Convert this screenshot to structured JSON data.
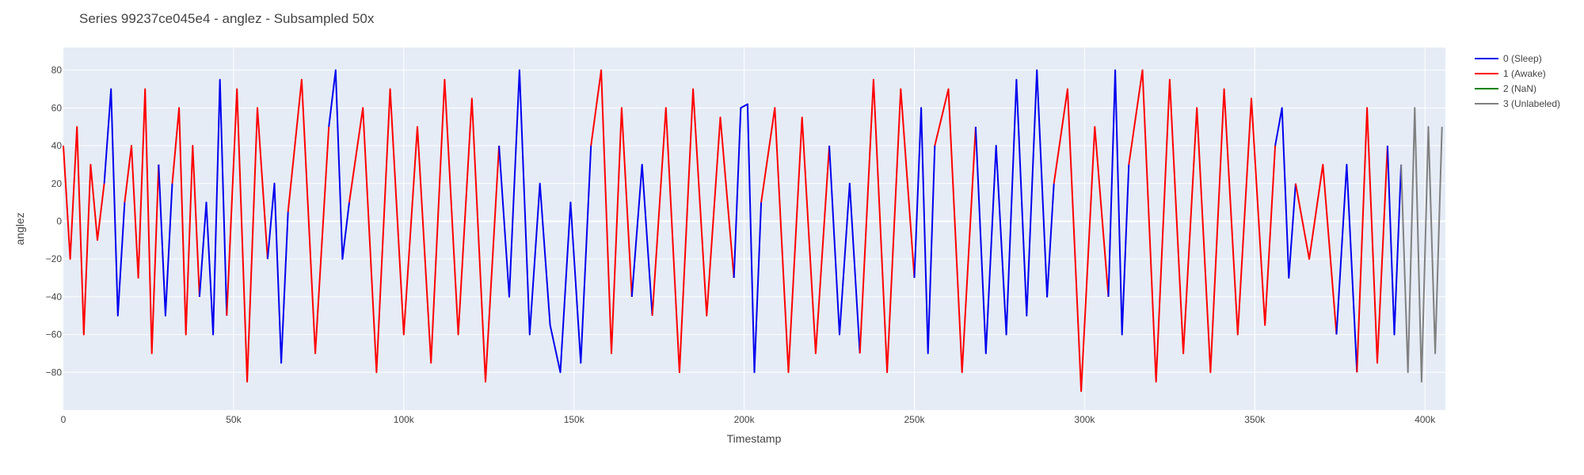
{
  "chart_data": {
    "type": "line",
    "title": "Series 99237ce045e4 - anglez - Subsampled 50x",
    "xlabel": "Timestamp",
    "ylabel": "anglez",
    "xlim": [
      0,
      406000
    ],
    "ylim": [
      -100,
      92
    ],
    "x_ticks": [
      {
        "value": 0,
        "label": "0"
      },
      {
        "value": 50000,
        "label": "50k"
      },
      {
        "value": 100000,
        "label": "100k"
      },
      {
        "value": 150000,
        "label": "150k"
      },
      {
        "value": 200000,
        "label": "200k"
      },
      {
        "value": 250000,
        "label": "250k"
      },
      {
        "value": 300000,
        "label": "300k"
      },
      {
        "value": 350000,
        "label": "350k"
      },
      {
        "value": 400000,
        "label": "400k"
      }
    ],
    "y_ticks": [
      {
        "value": 80,
        "label": "80"
      },
      {
        "value": 60,
        "label": "60"
      },
      {
        "value": 40,
        "label": "40"
      },
      {
        "value": 20,
        "label": "20"
      },
      {
        "value": 0,
        "label": "0"
      },
      {
        "value": -20,
        "label": "−20"
      },
      {
        "value": -40,
        "label": "−40"
      },
      {
        "value": -60,
        "label": "−60"
      },
      {
        "value": -80,
        "label": "−80"
      }
    ],
    "grid": true,
    "legend_position": "top-right",
    "series": [
      {
        "name": "0 (Sleep)",
        "color": "#0000ee"
      },
      {
        "name": "1 (Awake)",
        "color": "#ff0000"
      },
      {
        "name": "2 (NaN)",
        "color": "#008000"
      },
      {
        "name": "3 (Unlabeled)",
        "color": "#808080"
      }
    ],
    "segments": [
      {
        "series": 1,
        "x": [
          0,
          2000,
          4000,
          6000,
          8000,
          10000,
          12000
        ],
        "y": [
          40,
          -20,
          50,
          -60,
          30,
          -10,
          20
        ]
      },
      {
        "series": 0,
        "x": [
          12000,
          14000,
          16000,
          18000
        ],
        "y": [
          20,
          70,
          -50,
          10
        ]
      },
      {
        "series": 1,
        "x": [
          18000,
          20000,
          22000,
          24000,
          26000,
          28000
        ],
        "y": [
          10,
          40,
          -30,
          70,
          -70,
          30
        ]
      },
      {
        "series": 0,
        "x": [
          28000,
          30000,
          32000
        ],
        "y": [
          30,
          -50,
          20
        ]
      },
      {
        "series": 1,
        "x": [
          32000,
          34000,
          36000,
          38000,
          40000
        ],
        "y": [
          20,
          60,
          -60,
          40,
          -40
        ]
      },
      {
        "series": 0,
        "x": [
          40000,
          42000,
          44000,
          46000,
          48000
        ],
        "y": [
          -40,
          10,
          -60,
          75,
          -50
        ]
      },
      {
        "series": 1,
        "x": [
          48000,
          51000,
          54000,
          57000,
          60000
        ],
        "y": [
          -50,
          70,
          -85,
          60,
          -20
        ]
      },
      {
        "series": 0,
        "x": [
          60000,
          62000,
          64000,
          66000
        ],
        "y": [
          -20,
          20,
          -75,
          5
        ]
      },
      {
        "series": 1,
        "x": [
          66000,
          70000,
          74000,
          78000
        ],
        "y": [
          5,
          75,
          -70,
          50
        ]
      },
      {
        "series": 0,
        "x": [
          78000,
          80000,
          82000,
          84000
        ],
        "y": [
          50,
          80,
          -20,
          10
        ]
      },
      {
        "series": 1,
        "x": [
          84000,
          88000,
          92000,
          96000,
          100000,
          104000,
          108000,
          112000,
          116000,
          120000,
          124000,
          128000
        ],
        "y": [
          10,
          60,
          -80,
          70,
          -60,
          50,
          -75,
          75,
          -60,
          65,
          -85,
          40
        ]
      },
      {
        "series": 0,
        "x": [
          128000,
          131000,
          134000,
          137000,
          140000,
          143000,
          146000,
          149000,
          152000,
          155000
        ],
        "y": [
          40,
          -40,
          80,
          -60,
          20,
          -55,
          -80,
          10,
          -75,
          40
        ]
      },
      {
        "series": 1,
        "x": [
          155000,
          158000,
          161000,
          164000,
          167000
        ],
        "y": [
          40,
          80,
          -70,
          60,
          -40
        ]
      },
      {
        "series": 0,
        "x": [
          167000,
          170000,
          173000
        ],
        "y": [
          -40,
          30,
          -50
        ]
      },
      {
        "series": 1,
        "x": [
          173000,
          177000,
          181000,
          185000,
          189000,
          193000,
          197000
        ],
        "y": [
          -50,
          60,
          -80,
          70,
          -50,
          55,
          -30
        ]
      },
      {
        "series": 0,
        "x": [
          197000,
          199000,
          201000,
          203000,
          205000
        ],
        "y": [
          -30,
          60,
          62,
          -80,
          10
        ]
      },
      {
        "series": 1,
        "x": [
          205000,
          209000,
          213000,
          217000,
          221000,
          225000
        ],
        "y": [
          10,
          60,
          -80,
          55,
          -70,
          40
        ]
      },
      {
        "series": 0,
        "x": [
          225000,
          228000,
          231000,
          234000
        ],
        "y": [
          40,
          -60,
          20,
          -70
        ]
      },
      {
        "series": 1,
        "x": [
          234000,
          238000,
          242000,
          246000,
          250000
        ],
        "y": [
          -70,
          75,
          -80,
          70,
          -30
        ]
      },
      {
        "series": 0,
        "x": [
          250000,
          252000,
          254000,
          256000
        ],
        "y": [
          -30,
          60,
          -70,
          40
        ]
      },
      {
        "series": 1,
        "x": [
          256000,
          260000,
          264000,
          268000
        ],
        "y": [
          40,
          70,
          -80,
          50
        ]
      },
      {
        "series": 0,
        "x": [
          268000,
          271000,
          274000,
          277000,
          280000,
          283000,
          286000,
          289000,
          291000
        ],
        "y": [
          50,
          -70,
          40,
          -60,
          75,
          -50,
          80,
          -40,
          20
        ]
      },
      {
        "series": 1,
        "x": [
          291000,
          295000,
          299000,
          303000,
          307000
        ],
        "y": [
          20,
          70,
          -90,
          50,
          -40
        ]
      },
      {
        "series": 0,
        "x": [
          307000,
          309000,
          311000,
          313000
        ],
        "y": [
          -40,
          80,
          -60,
          30
        ]
      },
      {
        "series": 1,
        "x": [
          313000,
          317000,
          321000,
          325000,
          329000,
          333000,
          337000,
          341000,
          345000,
          349000,
          353000,
          356000
        ],
        "y": [
          30,
          80,
          -85,
          75,
          -70,
          60,
          -80,
          70,
          -60,
          65,
          -55,
          40
        ]
      },
      {
        "series": 0,
        "x": [
          356000,
          358000,
          360000,
          362000
        ],
        "y": [
          40,
          60,
          -30,
          20
        ]
      },
      {
        "series": 1,
        "x": [
          362000,
          366000,
          370000,
          374000
        ],
        "y": [
          20,
          -20,
          30,
          -60
        ]
      },
      {
        "series": 0,
        "x": [
          374000,
          377000,
          380000
        ],
        "y": [
          -60,
          30,
          -80
        ]
      },
      {
        "series": 1,
        "x": [
          380000,
          383000,
          386000,
          389000
        ],
        "y": [
          -80,
          60,
          -75,
          40
        ]
      },
      {
        "series": 0,
        "x": [
          389000,
          391000,
          393000
        ],
        "y": [
          40,
          -60,
          30
        ]
      },
      {
        "series": 3,
        "x": [
          393000,
          395000,
          397000,
          399000,
          401000,
          403000,
          405000
        ],
        "y": [
          30,
          -80,
          60,
          -85,
          50,
          -70,
          50
        ]
      }
    ]
  }
}
